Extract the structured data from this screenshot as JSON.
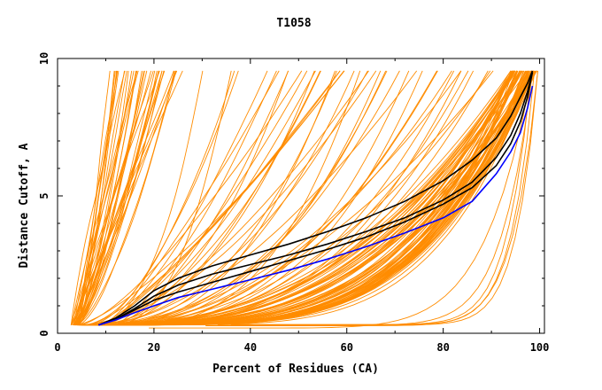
{
  "chart_data": {
    "type": "line",
    "title": "T1058",
    "xlabel": "Percent of Residues (CA)",
    "ylabel": "Distance Cutoff, A",
    "xlim": [
      0,
      101
    ],
    "ylim": [
      0,
      10
    ],
    "xticks": [
      0,
      20,
      40,
      60,
      80,
      100
    ],
    "yticks": [
      0,
      5,
      10
    ],
    "grid": false,
    "legend": "none",
    "colors": {
      "background_curves": "#ff8c00",
      "highlight_black": "#000000",
      "highlight_blue": "#0000ff"
    },
    "background_curve_groups": [
      {
        "kind": "steep-left",
        "count": 38,
        "x_start": [
          2.8,
          4.5
        ],
        "x_end": [
          10,
          26
        ],
        "x_at_9_5": [
          10,
          26
        ]
      },
      {
        "kind": "middle-fan",
        "count": 22,
        "x_start": [
          3,
          12
        ],
        "x_end": [
          30,
          62
        ],
        "x_at_9_5": [
          30,
          62
        ]
      },
      {
        "kind": "upper-fan",
        "count": 22,
        "x_start": [
          5,
          15
        ],
        "x_end": [
          62,
          92
        ],
        "x_at_9_5": [
          62,
          92
        ]
      },
      {
        "kind": "main-band",
        "count": 70,
        "x_start": [
          4,
          12
        ],
        "x_end": [
          94,
          99.5
        ],
        "x_at_9_5": [
          94,
          99.5
        ]
      },
      {
        "kind": "low-tail",
        "count": 6,
        "x_start": [
          18,
          40
        ],
        "x_end": [
          98,
          100
        ],
        "x_at_9_5": [
          98,
          100
        ]
      }
    ],
    "series": [
      {
        "color": "#000000",
        "x": [
          8.5,
          12,
          16,
          20,
          25,
          32,
          40,
          48,
          56,
          64,
          72,
          80,
          86,
          91,
          94,
          96,
          97.5,
          98.5
        ],
        "y": [
          0.3,
          0.55,
          1.0,
          1.55,
          2.0,
          2.45,
          2.85,
          3.25,
          3.7,
          4.2,
          4.8,
          5.55,
          6.3,
          7.1,
          7.9,
          8.6,
          9.1,
          9.55
        ]
      },
      {
        "color": "#000000",
        "x": [
          8.5,
          12,
          16,
          20,
          25,
          32,
          40,
          48,
          56,
          64,
          72,
          80,
          86,
          91,
          94,
          96,
          97.5,
          98.5
        ],
        "y": [
          0.3,
          0.5,
          0.9,
          1.35,
          1.75,
          2.15,
          2.5,
          2.85,
          3.25,
          3.7,
          4.2,
          4.85,
          5.5,
          6.4,
          7.2,
          8.0,
          8.8,
          9.5
        ]
      },
      {
        "color": "#000000",
        "x": [
          8.5,
          12,
          16,
          20,
          25,
          32,
          40,
          48,
          56,
          64,
          72,
          80,
          86,
          91,
          94,
          96,
          97.5,
          98.5
        ],
        "y": [
          0.3,
          0.5,
          0.85,
          1.2,
          1.5,
          1.85,
          2.25,
          2.65,
          3.05,
          3.5,
          4.05,
          4.7,
          5.3,
          6.1,
          6.9,
          7.7,
          8.6,
          9.5
        ]
      },
      {
        "color": "#0000ff",
        "x": [
          8.5,
          12,
          16,
          20,
          25,
          32,
          40,
          48,
          56,
          64,
          72,
          80,
          86,
          91,
          94,
          96,
          97.5,
          98.5
        ],
        "y": [
          0.3,
          0.48,
          0.75,
          1.0,
          1.3,
          1.6,
          1.95,
          2.3,
          2.7,
          3.15,
          3.65,
          4.2,
          4.8,
          5.8,
          6.6,
          7.3,
          8.2,
          9.0
        ]
      }
    ]
  }
}
